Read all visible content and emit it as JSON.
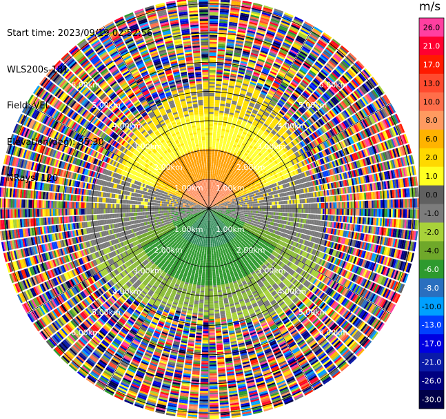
{
  "header": {
    "start_time": "Start time: 2023/09/19 02:52:56",
    "instrument": "WLS200s-181",
    "field": "Field: VEL",
    "elevation": "Elevation(deg): 35.30",
    "nrays": "NRays: 120"
  },
  "chart_data": {
    "type": "heatmap",
    "projection": "ppi-polar",
    "field": "VEL",
    "units": "m/s",
    "nrays": 120,
    "elevation_deg": 35.3,
    "max_range_km": 7.2,
    "range_rings_km": [
      1,
      2,
      3,
      4,
      5,
      6,
      7
    ],
    "ring_labels": [
      "1.00km",
      "2.00km",
      "3.00km",
      "4.00km",
      "5.00km",
      "6.00km"
    ],
    "colorbar": {
      "title": "m/s",
      "range": [
        -30.0,
        30.0
      ],
      "ticks": [
        "26.0",
        "21.0",
        "17.0",
        "13.0",
        "10.0",
        "8.0",
        "6.0",
        "2.0",
        "1.0",
        "0.0",
        "-1.0",
        "-2.0",
        "-4.0",
        "-6.0",
        "-8.0",
        "-10.0",
        "-13.0",
        "-17.0",
        "-21.0",
        "-26.0",
        "-30.0"
      ],
      "colors": [
        "#ff3fa0",
        "#ff0030",
        "#ff1a00",
        "#ff4a2e",
        "#ff6e4a",
        "#ff9a60",
        "#ffb300",
        "#ffd800",
        "#ffff20",
        "#606060",
        "#7c7c7c",
        "#a8d23a",
        "#6fa82a",
        "#2e9a2e",
        "#2a6fbf",
        "#00a0ff",
        "#0040ff",
        "#0000e0",
        "#0a1aa8",
        "#000080",
        "#000048"
      ]
    },
    "velocity_pattern": {
      "noise_beyond_km": 4.0,
      "inner_towards": "north",
      "inner_away": "south"
    }
  }
}
